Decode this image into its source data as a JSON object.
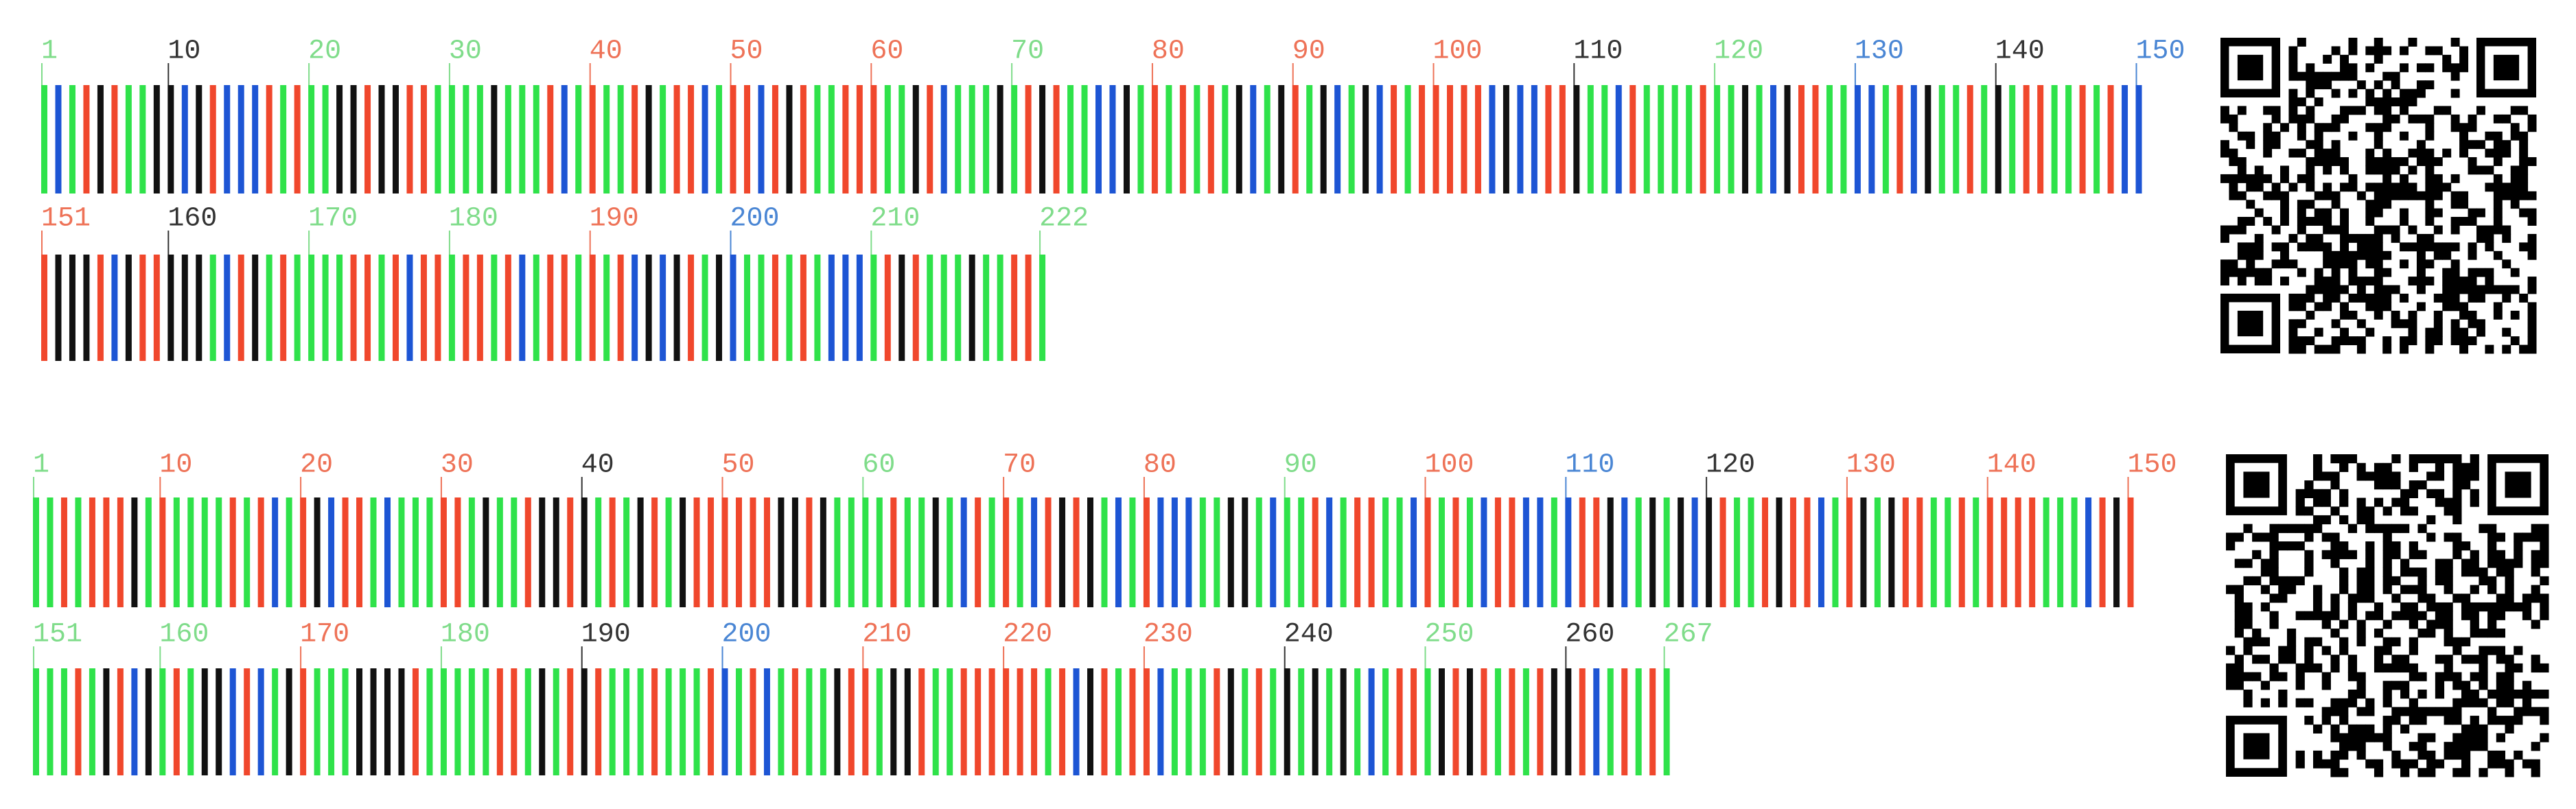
{
  "blocks": [
    {
      "rows": [
        {
          "labels": [
            "1",
            "10",
            "20",
            "30",
            "40",
            "50",
            "60",
            "70",
            "80",
            "90",
            "100",
            "110",
            "120",
            "130",
            "140",
            "150"
          ]
        },
        {
          "labels": [
            "151",
            "160",
            "170",
            "180",
            "190",
            "200",
            "210",
            "222"
          ]
        }
      ]
    },
    {
      "rows": [
        {
          "labels": [
            "1",
            "10",
            "20",
            "30",
            "40",
            "50",
            "60",
            "70",
            "80",
            "90",
            "100",
            "110",
            "120",
            "130",
            "140",
            "150"
          ]
        },
        {
          "labels": [
            "151",
            "160",
            "170",
            "180",
            "190",
            "200",
            "210",
            "220",
            "230",
            "240",
            "250",
            "260",
            "267"
          ]
        }
      ]
    }
  ]
}
